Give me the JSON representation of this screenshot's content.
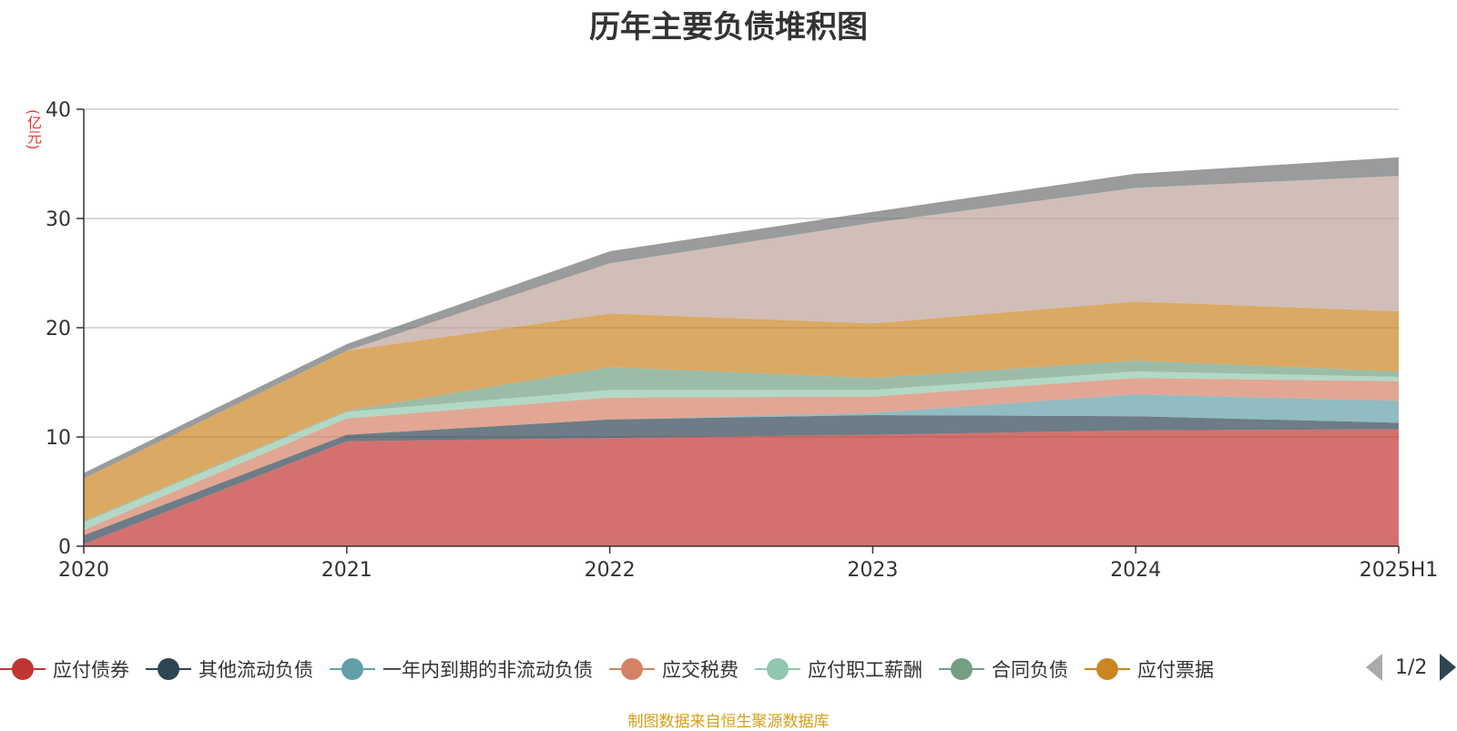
{
  "chart_data": {
    "type": "area",
    "title": "历年主要负债堆积图",
    "ylabel": "(亿元)",
    "xlabel": "",
    "ylim": [
      0,
      40
    ],
    "yticks": [
      0,
      10,
      20,
      30,
      40
    ],
    "grid": true,
    "legend_position": "bottom",
    "categories": [
      "2020",
      "2021",
      "2022",
      "2023",
      "2024",
      "2025H1"
    ],
    "series": [
      {
        "name": "应付债券",
        "color": "#c23531",
        "values": [
          0.2,
          9.6,
          9.9,
          10.2,
          10.6,
          10.7
        ]
      },
      {
        "name": "其他流动负债",
        "color": "#2f4554",
        "values": [
          0.8,
          0.6,
          1.7,
          1.8,
          1.3,
          0.6
        ]
      },
      {
        "name": "一年内到期的非流动负债",
        "color": "#61a0a8",
        "values": [
          0.0,
          0.0,
          0.0,
          0.2,
          2.0,
          2.0
        ]
      },
      {
        "name": "应交税费",
        "color": "#d48265",
        "values": [
          0.5,
          1.5,
          2.0,
          1.5,
          1.5,
          1.8
        ]
      },
      {
        "name": "应付职工薪酬",
        "color": "#91c7ae",
        "values": [
          0.7,
          0.6,
          0.7,
          0.6,
          0.6,
          0.4
        ]
      },
      {
        "name": "合同负债",
        "color": "#749f83",
        "values": [
          0.1,
          0.1,
          2.1,
          1.1,
          1.0,
          0.5
        ]
      },
      {
        "name": "应付票据",
        "color": "#ca8622",
        "values": [
          3.9,
          5.5,
          4.9,
          5.0,
          5.4,
          5.5
        ]
      },
      {
        "name": "",
        "color": "#bda29a",
        "values": [
          0.0,
          0.0,
          4.6,
          9.2,
          10.4,
          12.4
        ]
      },
      {
        "name": "",
        "color": "#6e7074",
        "values": [
          0.5,
          0.6,
          1.1,
          1.0,
          1.3,
          1.7
        ]
      }
    ]
  },
  "legend_page": "1/2",
  "source": "制图数据来自恒生聚源数据库"
}
